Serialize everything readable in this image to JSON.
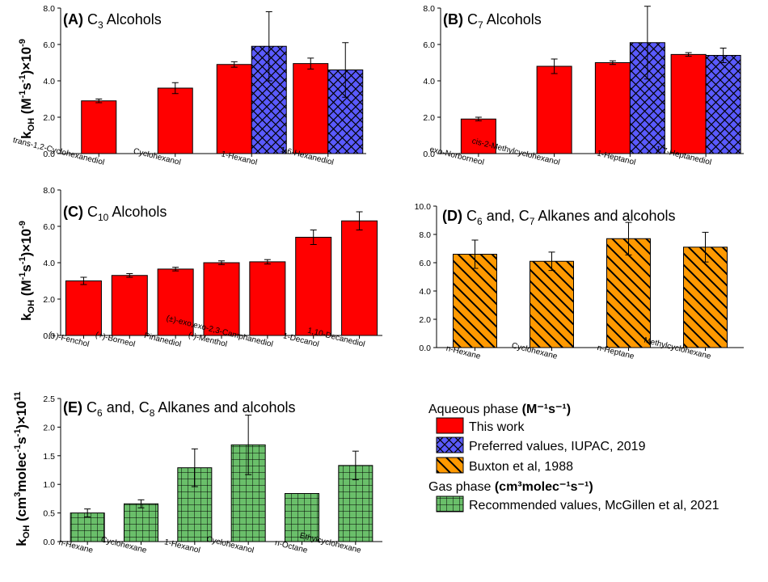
{
  "colors": {
    "this_work": "#ff0000",
    "iupac": "#5a5aff",
    "buxton": "#ff9900",
    "mcgillen": "#6abf6a",
    "outline": "#000000"
  },
  "legend": {
    "aqueous_header": "Aqueous phase",
    "aqueous_units": "(M⁻¹s⁻¹)",
    "gas_header": "Gas phase",
    "gas_units": "(cm³molec⁻¹s⁻¹)",
    "items": [
      {
        "label": "This work",
        "color": "#ff0000",
        "pattern": "solid"
      },
      {
        "label": "Preferred values, IUPAC, 2019",
        "color": "#5a5aff",
        "pattern": "crosshatch"
      },
      {
        "label": "Buxton et al, 1988",
        "color": "#ff9900",
        "pattern": "diagonal"
      },
      {
        "label": "Recommended values, McGillen et al, 2021",
        "color": "#6abf6a",
        "pattern": "grid"
      }
    ]
  },
  "chart_data": [
    {
      "panel": "A",
      "type": "bar",
      "title": "(A) C3 Alcohols",
      "title_parts": [
        "(A)",
        "C",
        "3",
        "Alcohols"
      ],
      "ylabel": "kOH (M-1s-1)×10-9",
      "ylim": [
        0,
        8
      ],
      "yticks": [
        "0.0",
        "2.0",
        "4.0",
        "6.0",
        "8.0"
      ],
      "categories": [
        "trans-1,2-Cyclohexanediol",
        "Cyclohexanol",
        "1-Hexanol",
        "1,6-Hexanediol"
      ],
      "series": [
        {
          "name": "This work",
          "values": [
            2.9,
            3.6,
            4.9,
            4.95
          ],
          "errors": [
            0.1,
            0.3,
            0.15,
            0.3
          ]
        },
        {
          "name": "Preferred values, IUPAC, 2019",
          "values": [
            null,
            null,
            5.9,
            4.6
          ],
          "errors": [
            null,
            null,
            1.9,
            1.5
          ]
        }
      ]
    },
    {
      "panel": "B",
      "type": "bar",
      "title": "(B) C7 Alcohols",
      "title_parts": [
        "(B)",
        "C",
        "7",
        "Alcohols"
      ],
      "ylim": [
        0,
        8
      ],
      "yticks": [
        "0.0",
        "2.0",
        "4.0",
        "6.0",
        "8.0"
      ],
      "categories": [
        "exo-Norborneol",
        "cis-2-Methylcyclohexanol",
        "1-Heptanol",
        "1,7-Heptanediol"
      ],
      "series": [
        {
          "name": "This work",
          "values": [
            1.9,
            4.8,
            5.0,
            5.45
          ],
          "errors": [
            0.1,
            0.4,
            0.1,
            0.1
          ]
        },
        {
          "name": "Preferred values, IUPAC, 2019",
          "values": [
            null,
            null,
            6.1,
            5.4
          ],
          "errors": [
            null,
            null,
            2.0,
            0.4
          ]
        }
      ]
    },
    {
      "panel": "C",
      "type": "bar",
      "title": "(C) C10 Alcohols",
      "title_parts": [
        "(C)",
        "C",
        "10",
        "Alcohols"
      ],
      "ylabel": "kOH (M-1s-1)×10-9",
      "ylim": [
        0,
        8
      ],
      "yticks": [
        "0.0",
        "2.0",
        "4.0",
        "6.0",
        "8.0"
      ],
      "categories": [
        "(+)-Fenchol",
        "(+)-Borneol",
        "Pinanediol",
        "(-)-Menthol",
        "(±)-exo,exo-2,3-Camphanediol",
        "1-Decanol",
        "1,10-Decanediol"
      ],
      "series": [
        {
          "name": "This work",
          "values": [
            3.0,
            3.3,
            3.65,
            4.0,
            4.05,
            5.4,
            6.3
          ],
          "errors": [
            0.2,
            0.1,
            0.1,
            0.1,
            0.12,
            0.4,
            0.5
          ]
        }
      ]
    },
    {
      "panel": "D",
      "type": "bar",
      "title": "(D) C6 and, C7 Alkanes and alcohols",
      "title_parts": [
        "(D)",
        "C",
        "6",
        "and, C",
        "7",
        "Alkanes and alcohols"
      ],
      "ylim": [
        0,
        10
      ],
      "yticks": [
        "0.0",
        "2.0",
        "4.0",
        "6.0",
        "8.0",
        "10.0"
      ],
      "categories": [
        "n-Hexane",
        "Cyclohexane",
        "n-Heptane",
        "Methylcyclohexane"
      ],
      "series": [
        {
          "name": "Buxton et al, 1988",
          "values": [
            6.6,
            6.1,
            7.7,
            7.1
          ],
          "errors": [
            1.0,
            0.65,
            1.15,
            1.05
          ]
        }
      ]
    },
    {
      "panel": "E",
      "type": "bar",
      "title": "(E) C6 and, C8 Alkanes and alcohols",
      "title_parts": [
        "(E)",
        "C",
        "6",
        "and, C",
        "8",
        "Alkanes and alcohols"
      ],
      "ylabel": "kOH (cm3molec-1s-1)×1011",
      "ylim": [
        0,
        2.5
      ],
      "yticks": [
        "0.0",
        "0.5",
        "1.0",
        "1.5",
        "2.0",
        "2.5"
      ],
      "categories": [
        "n-Hexane",
        "Cyclohexane",
        "1-Hexanol",
        "Cyclohexanol",
        "n-Octane",
        "Ethylcyclohexane"
      ],
      "series": [
        {
          "name": "Recommended values, McGillen et al, 2021",
          "values": [
            0.5,
            0.66,
            1.29,
            1.69,
            0.84,
            1.33
          ],
          "errors": [
            0.07,
            0.07,
            0.33,
            0.52,
            0.0,
            0.25
          ]
        }
      ]
    }
  ]
}
